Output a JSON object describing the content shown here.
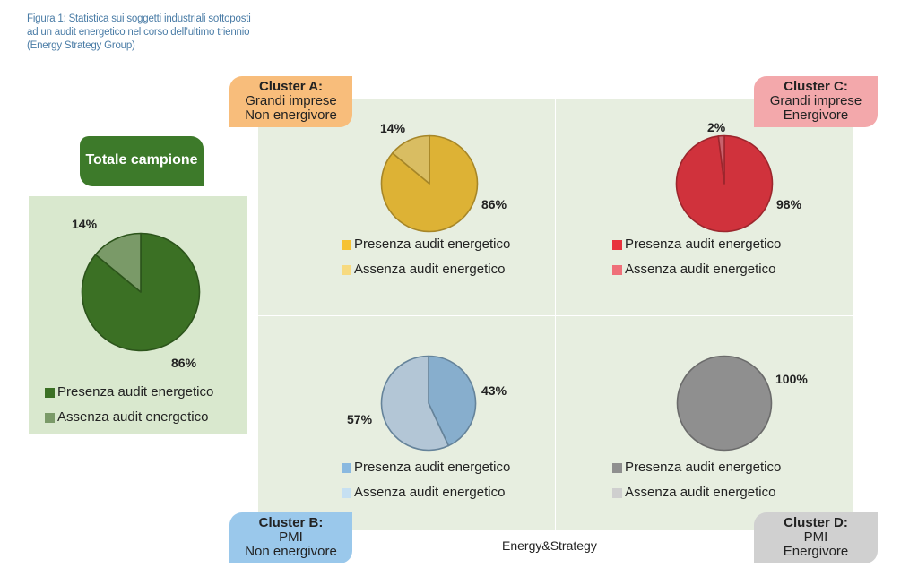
{
  "caption": "Figura 1: Statistica sui soggetti industriali sottoposti ad un audit energetico nel corso dell’ultimo triennio (Energy Strategy Group)",
  "footer": "Energy&Strategy",
  "legend_labels": [
    "Presenza audit energetico",
    "Assenza audit energetico"
  ],
  "chart_data": [
    {
      "type": "pie",
      "title": "Totale campione",
      "title_lines": [
        "Totale campione"
      ],
      "labels": [
        "Presenza audit energetico",
        "Assenza audit energetico"
      ],
      "values": [
        86,
        14
      ],
      "data_labels": [
        "86%",
        "14%"
      ],
      "colors": [
        "#3b7024",
        "#7a9a68"
      ],
      "legend_colors": [
        "#3b7024",
        "#7a9a68"
      ],
      "legend": "bottom"
    },
    {
      "type": "pie",
      "title": "Cluster A: Grandi imprese Non energivore",
      "title_lines": [
        "Cluster A:",
        "Grandi imprese",
        "Non energivore"
      ],
      "labels": [
        "Presenza audit energetico",
        "Assenza audit energetico"
      ],
      "values": [
        86,
        14
      ],
      "data_labels": [
        "86%",
        "14%"
      ],
      "colors": [
        "#ddb235",
        "#d9bd62"
      ],
      "legend_colors": [
        "#f6c233",
        "#f7da80"
      ],
      "legend": "bottom"
    },
    {
      "type": "pie",
      "title": "Cluster C: Grandi imprese Energivore",
      "title_lines": [
        "Cluster C:",
        "Grandi imprese",
        "Energivore"
      ],
      "labels": [
        "Presenza audit energetico",
        "Assenza audit energetico"
      ],
      "values": [
        98,
        2
      ],
      "data_labels": [
        "98%",
        "2%"
      ],
      "colors": [
        "#d0323c",
        "#c9626c"
      ],
      "legend_colors": [
        "#e8323e",
        "#ef6f79"
      ],
      "legend": "bottom"
    },
    {
      "type": "pie",
      "title": "Cluster B: PMI Non energivore",
      "title_lines": [
        "Cluster B:",
        "PMI",
        "Non energivore"
      ],
      "labels": [
        "Presenza audit energetico",
        "Assenza audit energetico"
      ],
      "values": [
        43,
        57
      ],
      "data_labels": [
        "43%",
        "57%"
      ],
      "colors": [
        "#87aecd",
        "#b3c6d6"
      ],
      "legend_colors": [
        "#8ab9e0",
        "#c6e0f2"
      ],
      "legend": "bottom"
    },
    {
      "type": "pie",
      "title": "Cluster D: PMI Energivore",
      "title_lines": [
        "Cluster D:",
        "PMI",
        "Energivore"
      ],
      "labels": [
        "Presenza audit energetico",
        "Assenza audit energetico"
      ],
      "values": [
        100,
        0
      ],
      "data_labels": [
        "100%",
        ""
      ],
      "colors": [
        "#8f8f8f",
        "#c8c8c8"
      ],
      "legend_colors": [
        "#8f8f8f",
        "#cfcfcf"
      ],
      "legend": "bottom"
    }
  ]
}
